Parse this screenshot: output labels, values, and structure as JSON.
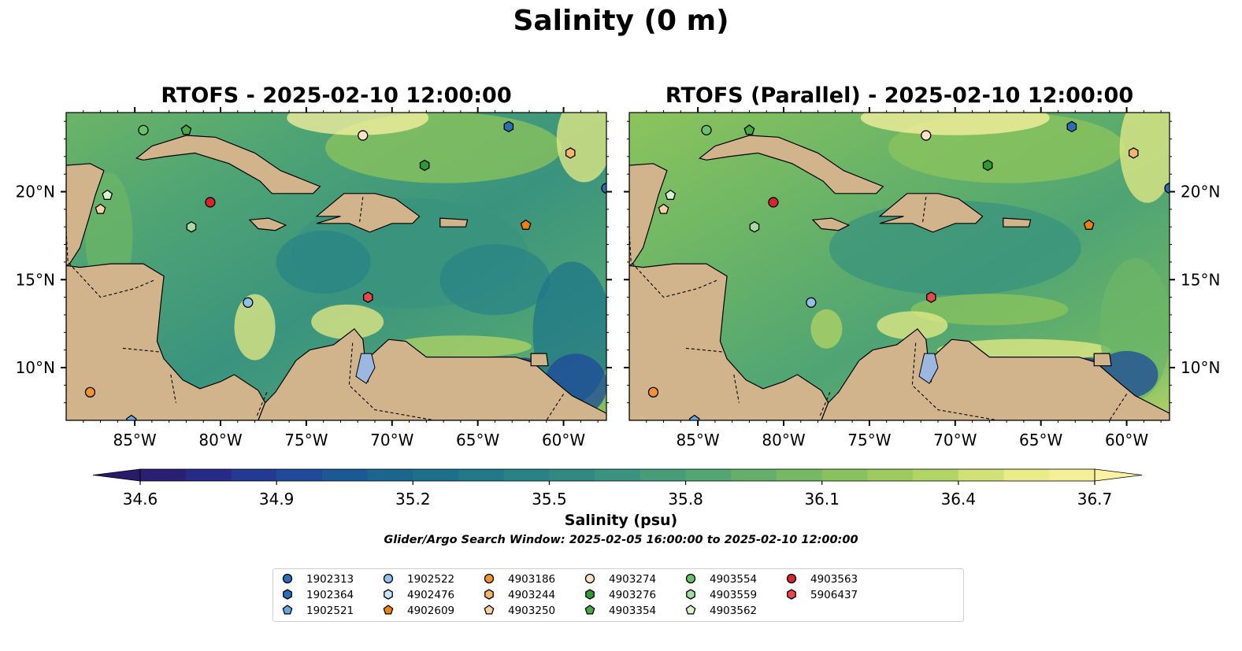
{
  "title": "Salinity (0 m)",
  "panels": [
    {
      "title": "RTOFS - 2025-02-10 12:00:00"
    },
    {
      "title": "RTOFS (Parallel) - 2025-02-10 12:00:00"
    }
  ],
  "map": {
    "lon_range": [
      -89,
      -57.5
    ],
    "lat_range": [
      7,
      24.5
    ],
    "lon_ticks": [
      "85°W",
      "80°W",
      "75°W",
      "70°W",
      "65°W",
      "60°W"
    ],
    "lat_ticks": [
      "20°N",
      "15°N",
      "10°N"
    ],
    "land_color": "#d2b48c",
    "lake_color": "#9cb7e0",
    "pacific_color": "#2b1d6e"
  },
  "colorbar": {
    "label": "Salinity (psu)",
    "ticks": [
      "34.6",
      "34.9",
      "35.2",
      "35.5",
      "35.8",
      "36.1",
      "36.4",
      "36.7"
    ],
    "range": [
      34.6,
      36.7
    ],
    "colormap": [
      "#2a1b6a",
      "#262e8c",
      "#1e4a99",
      "#1b6390",
      "#1e7589",
      "#2a8485",
      "#3a937e",
      "#4fa474",
      "#6cb567",
      "#8cc45c",
      "#b3d466",
      "#e7eb86",
      "#fbf1a0"
    ],
    "extend": "both"
  },
  "search_window": "Glider/Argo Search Window: 2025-02-05 16:00:00 to 2025-02-10 12:00:00",
  "floats": [
    {
      "id": "1902313",
      "marker": "circle",
      "color": "#2a6fb5",
      "lon": -57.5,
      "lat": 20.2
    },
    {
      "id": "1902364",
      "marker": "hexagon",
      "color": "#2a6fb5",
      "lon": -63.2,
      "lat": 23.7
    },
    {
      "id": "1902521",
      "marker": "pentagon",
      "color": "#6aa8dc",
      "lon": -85.2,
      "lat": 7.0
    },
    {
      "id": "1902522",
      "marker": "circle",
      "color": "#8fc1ea",
      "lon": -78.4,
      "lat": 13.7
    },
    {
      "id": "4902476",
      "marker": "hexagon",
      "color": "#c6e3f7",
      "lon": null,
      "lat": null
    },
    {
      "id": "4902609",
      "marker": "pentagon",
      "color": "#f07f11",
      "lon": -62.2,
      "lat": 18.1
    },
    {
      "id": "4903186",
      "marker": "circle",
      "color": "#f39232",
      "lon": -87.6,
      "lat": 8.6
    },
    {
      "id": "4903244",
      "marker": "hexagon",
      "color": "#f6b46e",
      "lon": -59.6,
      "lat": 22.2
    },
    {
      "id": "4903250",
      "marker": "pentagon",
      "color": "#fbd1a3",
      "lon": -87.0,
      "lat": 19.0
    },
    {
      "id": "4903274",
      "marker": "circle",
      "color": "#fde2c9",
      "lon": -71.7,
      "lat": 23.2
    },
    {
      "id": "4903276",
      "marker": "hexagon",
      "color": "#2f9a33",
      "lon": -68.1,
      "lat": 21.5
    },
    {
      "id": "4903354",
      "marker": "pentagon",
      "color": "#4aa84b",
      "lon": -82.0,
      "lat": 23.5
    },
    {
      "id": "4903554",
      "marker": "circle",
      "color": "#69c26a",
      "lon": -84.5,
      "lat": 23.5
    },
    {
      "id": "4903559",
      "marker": "hexagon",
      "color": "#a3dba0",
      "lon": -81.7,
      "lat": 18.0
    },
    {
      "id": "4903562",
      "marker": "pentagon",
      "color": "#d6f2cf",
      "lon": -86.6,
      "lat": 19.8
    },
    {
      "id": "4903563",
      "marker": "circle",
      "color": "#d7262b",
      "lon": -80.6,
      "lat": 19.4
    },
    {
      "id": "5906437",
      "marker": "hexagon",
      "color": "#e8474b",
      "lon": -71.4,
      "lat": 14.0
    }
  ]
}
